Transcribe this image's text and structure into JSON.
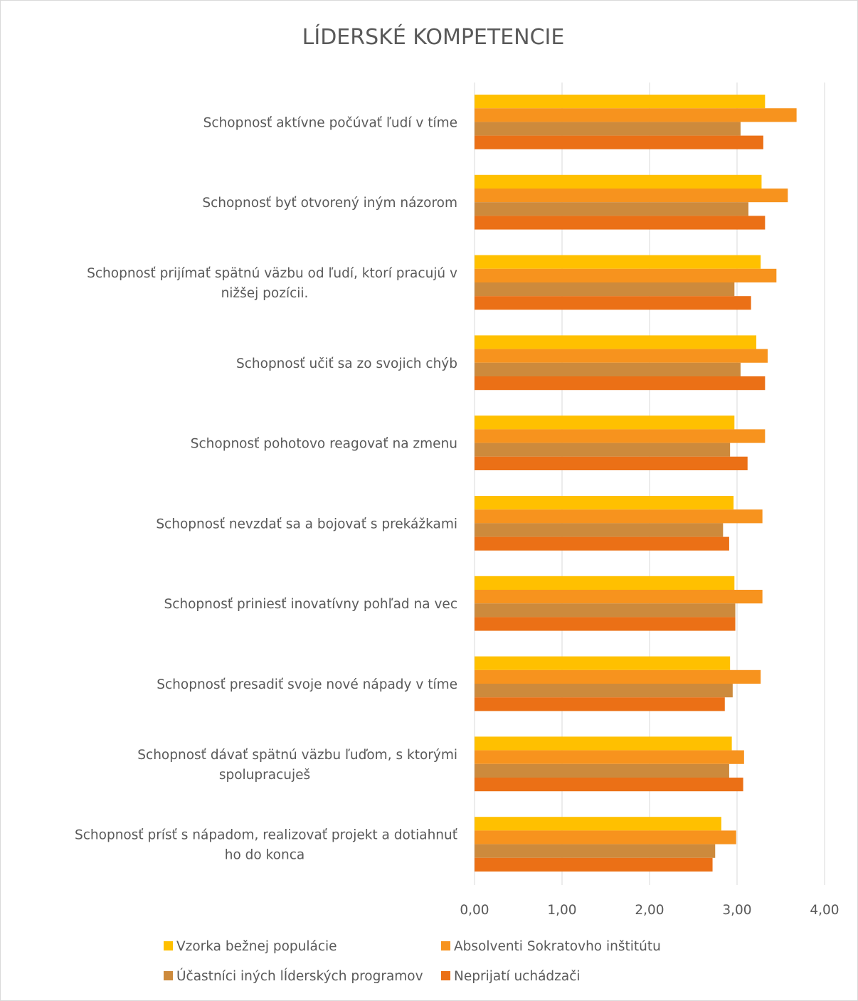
{
  "chart_data": {
    "type": "bar",
    "orientation": "horizontal",
    "title": "LÍDERSKÉ KOMPETENCIE",
    "categories": [
      "Schopnosť aktívne počúvať ľudí v tíme",
      "Schopnosť byť otvorený iným názorom",
      "Schopnosť prijímať spätnú väzbu od ľudí, ktorí pracujú v nižšej pozícii.",
      "Schopnosť učiť sa zo svojich chýb",
      "Schopnosť pohotovo reagovať na zmenu",
      "Schopnosť nevzdať sa a bojovať s prekážkami",
      "Schopnosť priniesť inovatívny pohľad na vec",
      "Schopnosť presadiť svoje nové nápady v tíme",
      "Schopnosť dávať spätnú väzbu ľuďom, s ktorými spolupracuješ",
      "Schopnosť prísť s nápadom, realizovať projekt a dotiahnuť ho do konca"
    ],
    "category_lines": [
      [
        "Schopnosť aktívne počúvať ľudí v tíme"
      ],
      [
        "Schopnosť byť otvorený iným názorom"
      ],
      [
        "Schopnosť prijímať spätnú väzbu od ľudí, ktorí pracujú v",
        "nižšej pozícii."
      ],
      [
        "Schopnosť učiť sa zo svojich chýb"
      ],
      [
        "Schopnosť pohotovo reagovať na zmenu"
      ],
      [
        "Schopnosť nevzdať sa a bojovať s prekážkami"
      ],
      [
        "Schopnosť priniesť inovatívny pohľad na vec"
      ],
      [
        "Schopnosť presadiť svoje nové nápady v tíme"
      ],
      [
        "Schopnosť dávať spätnú väzbu ľuďom, s ktorými",
        "spolupracuješ"
      ],
      [
        "Schopnosť prísť s nápadom, realizovať projekt a dotiahnuť",
        "ho do konca"
      ]
    ],
    "series": [
      {
        "name": "Vzorka bežnej populácie",
        "color": "#FFC000",
        "values": [
          3.32,
          3.28,
          3.27,
          3.22,
          2.97,
          2.96,
          2.97,
          2.92,
          2.94,
          2.82
        ]
      },
      {
        "name": "Absolventi Sokratovho inštitútu",
        "color": "#F7931E",
        "values": [
          3.68,
          3.58,
          3.45,
          3.35,
          3.32,
          3.29,
          3.29,
          3.27,
          3.08,
          2.99
        ]
      },
      {
        "name": "Účastníci iných lÍderských programov",
        "color": "#CD8A3C",
        "values": [
          3.04,
          3.13,
          2.97,
          3.04,
          2.92,
          2.84,
          2.98,
          2.95,
          2.91,
          2.75
        ]
      },
      {
        "name": "Neprijatí uchádzači",
        "color": "#EB7016",
        "values": [
          3.3,
          3.32,
          3.16,
          3.32,
          3.12,
          2.91,
          2.98,
          2.86,
          3.07,
          2.72
        ]
      }
    ],
    "xlim": [
      0,
      4
    ],
    "x_ticks": [
      0,
      1,
      2,
      3,
      4
    ],
    "x_tick_labels": [
      "0,00",
      "1,00",
      "2,00",
      "3,00",
      "4,00"
    ],
    "grid": true,
    "legend": "bottom",
    "colors": {
      "grid": "#d9d9d9",
      "text": "#595959",
      "border": "#d9d9d9"
    }
  }
}
